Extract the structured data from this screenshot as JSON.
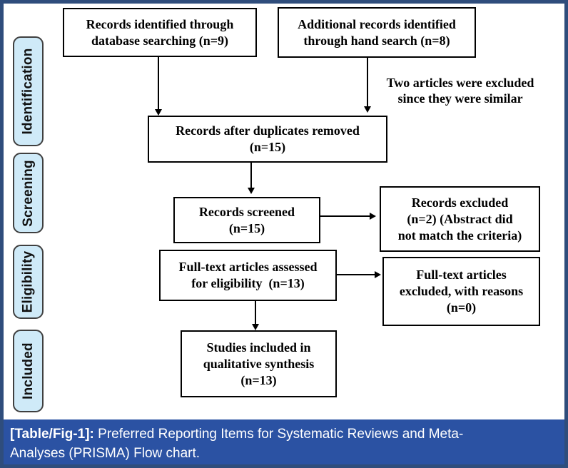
{
  "figure": {
    "caption": {
      "prefix": "[Table/Fig-1]:",
      "line1": "Preferred Reporting Items for Systematic Reviews and Meta-",
      "line2": "Analyses (PRISMA) Flow chart."
    },
    "colors": {
      "frame_border": "#2f4d7c",
      "caption_bg": "#2b52a3",
      "caption_text": "#ffffff",
      "stage_fill": "#cfeaf8",
      "stage_border": "#3f3f3f",
      "box_bg": "#ffffff",
      "box_border": "#000000",
      "arrow_color": "#000000",
      "text_color": "#000000"
    }
  },
  "sidebar": {
    "items": [
      {
        "label": "Identification"
      },
      {
        "label": "Screening"
      },
      {
        "label": "Eligibility"
      },
      {
        "label": "Included"
      }
    ]
  },
  "flowchart": {
    "boxes": [
      {
        "name": "records-identified",
        "lines": [
          "Records identified through",
          "database searching (n=9)"
        ]
      },
      {
        "name": "additional-records",
        "lines": [
          "Additional records identified",
          "through hand search (n=8)"
        ]
      },
      {
        "name": "after-duplicates",
        "lines": [
          "Records after duplicates removed",
          "(n=15)"
        ]
      },
      {
        "name": "records-screened",
        "lines": [
          "Records screened",
          "(n=15)"
        ]
      },
      {
        "name": "records-excluded",
        "lines": [
          "Records excluded",
          "(n=2) (Abstract did",
          "not match the criteria)"
        ]
      },
      {
        "name": "fulltext-assessed",
        "lines": [
          "Full-text articles assessed",
          "for eligibility  (n=13)"
        ]
      },
      {
        "name": "fulltext-excluded",
        "lines": [
          "Full-text articles",
          "excluded, with reasons",
          "(n=0)"
        ]
      },
      {
        "name": "studies-included",
        "lines": [
          "Studies included in",
          "qualitative synthesis",
          "(n=13)"
        ]
      }
    ],
    "note": {
      "line1": "Two articles were excluded",
      "line2": "since they were similar"
    }
  }
}
